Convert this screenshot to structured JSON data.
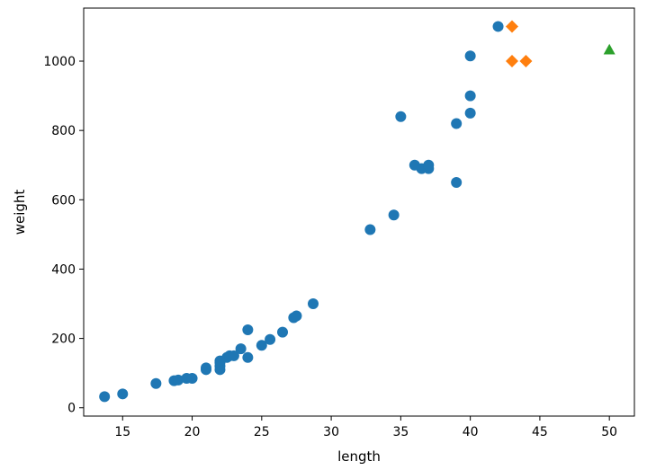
{
  "chart_data": {
    "type": "scatter",
    "xlabel": "length",
    "ylabel": "weight",
    "xlim": [
      12.2,
      51.8
    ],
    "ylim": [
      -24,
      1153
    ],
    "xticks": [
      15,
      20,
      25,
      30,
      35,
      40,
      45,
      50
    ],
    "yticks": [
      0,
      200,
      400,
      600,
      800,
      1000
    ],
    "grid": false,
    "series": [
      {
        "marker": "circle",
        "color": "#1f77b4",
        "points": [
          [
            13.7,
            32
          ],
          [
            15.0,
            40
          ],
          [
            17.4,
            70
          ],
          [
            18.7,
            78
          ],
          [
            19.0,
            80
          ],
          [
            19.6,
            85
          ],
          [
            20.0,
            85
          ],
          [
            21.0,
            110
          ],
          [
            21.0,
            115
          ],
          [
            22.0,
            110
          ],
          [
            22.0,
            120
          ],
          [
            22.0,
            130
          ],
          [
            22.0,
            135
          ],
          [
            22.5,
            145
          ],
          [
            22.7,
            150
          ],
          [
            23.0,
            150
          ],
          [
            23.5,
            170
          ],
          [
            24.0,
            145
          ],
          [
            24.0,
            225
          ],
          [
            25.0,
            180
          ],
          [
            25.6,
            197
          ],
          [
            26.5,
            218
          ],
          [
            27.3,
            260
          ],
          [
            27.5,
            265
          ],
          [
            28.7,
            300
          ],
          [
            32.8,
            514
          ],
          [
            34.5,
            556
          ],
          [
            35.0,
            840
          ],
          [
            36.0,
            700
          ],
          [
            36.5,
            690
          ],
          [
            37.0,
            690
          ],
          [
            37.0,
            700
          ],
          [
            39.0,
            650
          ],
          [
            39.0,
            820
          ],
          [
            40.0,
            850
          ],
          [
            40.0,
            900
          ],
          [
            40.0,
            1015
          ],
          [
            42.0,
            1100
          ]
        ]
      },
      {
        "marker": "diamond",
        "color": "#ff7f0e",
        "points": [
          [
            43.0,
            1100
          ],
          [
            43.0,
            1000
          ],
          [
            44.0,
            1000
          ]
        ]
      },
      {
        "marker": "triangle",
        "color": "#2ca02c",
        "points": [
          [
            50.0,
            1033
          ]
        ]
      }
    ]
  }
}
